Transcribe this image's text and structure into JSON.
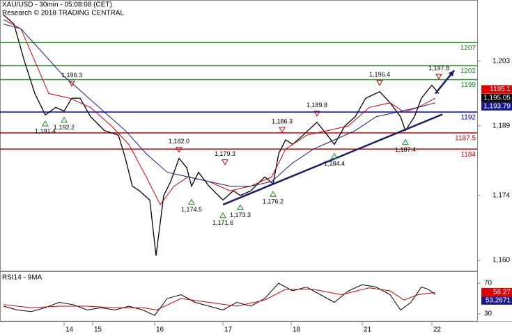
{
  "chart_data": {
    "type": "line",
    "title": "XAU/USD - 30min - 05:08:08 (CET)",
    "subtitle": "Research © 2018 TRADING CENTRAL",
    "xlim": [
      0,
      137
    ],
    "xticks": [
      {
        "value": 18.4,
        "label": "14"
      },
      {
        "value": 26.6,
        "label": "15"
      },
      {
        "value": 44.4,
        "label": "16"
      },
      {
        "value": 64,
        "label": "17"
      },
      {
        "value": 83.6,
        "label": "18"
      },
      {
        "value": 104,
        "label": "21"
      },
      {
        "value": 124,
        "label": "22"
      }
    ],
    "ylim": [
      1157.6,
      1216.2
    ],
    "yticks": [
      {
        "value": 1160,
        "label": "1,160"
      },
      {
        "value": 1174,
        "label": "1,174"
      },
      {
        "value": 1189,
        "label": "1,189"
      },
      {
        "value": 1203,
        "label": "1,203"
      }
    ],
    "series": [
      {
        "color": "#000000",
        "x": [
          1,
          4,
          7,
          10,
          13,
          16,
          18.4,
          20.6,
          23,
          26,
          30,
          34,
          36,
          38,
          40,
          43,
          44.8,
          47,
          49,
          51.4,
          53.6,
          55,
          57,
          60,
          64,
          67,
          69,
          72,
          76,
          78.4,
          80,
          82,
          84,
          87,
          91,
          94,
          96,
          99,
          102,
          105,
          109,
          112,
          115,
          116.4,
          119,
          121,
          124,
          126
        ],
        "values": [
          1213,
          1211,
          1203,
          1196,
          1191.4,
          1193,
          1192.2,
          1195,
          1195,
          1191,
          1188,
          1187,
          1182,
          1176,
          1175,
          1173,
          1161,
          1174,
          1177,
          1182,
          1180,
          1176,
          1179,
          1176,
          1173,
          1175,
          1174,
          1175,
          1178,
          1176.5,
          1183,
          1186,
          1185,
          1187,
          1189.8,
          1187,
          1185,
          1189,
          1191,
          1195,
          1196.4,
          1194,
          1191,
          1188,
          1191,
          1195,
          1197.8,
          1196
        ]
      },
      {
        "color": "#d00000",
        "x": [
          1,
          6,
          10,
          14,
          20,
          26,
          32,
          37,
          42,
          46,
          50,
          54,
          60,
          66,
          72,
          78,
          82,
          88,
          94,
          100,
          106,
          112,
          116,
          120,
          125
        ],
        "values": [
          1212,
          1210,
          1203,
          1196,
          1195,
          1193,
          1189,
          1185,
          1178,
          1172,
          1176,
          1178,
          1177,
          1175,
          1176,
          1178,
          1184,
          1187,
          1188,
          1189,
          1193,
          1194,
          1192,
          1193,
          1195
        ]
      },
      {
        "color": "#1a1a8c",
        "x": [
          1,
          6,
          12,
          18,
          24,
          30,
          36,
          42,
          48,
          54,
          60,
          66,
          72,
          78,
          84,
          90,
          96,
          102,
          108,
          114,
          120,
          125
        ],
        "values": [
          1211,
          1210,
          1205,
          1200,
          1196,
          1192,
          1188,
          1183,
          1179,
          1178,
          1177,
          1176,
          1176,
          1177,
          1181,
          1184,
          1186,
          1188,
          1191,
          1192,
          1193,
          1194
        ]
      }
    ],
    "levels": [
      {
        "value": 1207,
        "color": "#1a8a1a"
      },
      {
        "value": 1202,
        "color": "#1a8a1a"
      },
      {
        "value": 1199,
        "color": "#1a8a1a"
      },
      {
        "value": 1192,
        "color": "#0000b0"
      },
      {
        "value": 1187.5,
        "color": "#c00000"
      },
      {
        "value": 1184,
        "color": "#c00000"
      }
    ],
    "annotations": [
      {
        "x": 13,
        "value": 1191.4,
        "label": "1,191.4",
        "marker": "up"
      },
      {
        "x": 18.4,
        "value": 1192.2,
        "label": "1,192.2",
        "marker": "up"
      },
      {
        "x": 20.6,
        "value": 1196.3,
        "label": "1,196.3",
        "marker": "down"
      },
      {
        "x": 51.4,
        "value": 1182.0,
        "label": "1,182.0",
        "marker": "down"
      },
      {
        "x": 55,
        "value": 1174.5,
        "label": "1,174.5",
        "marker": "up"
      },
      {
        "x": 64.6,
        "value": 1179.3,
        "label": "1,179.3",
        "marker": "down"
      },
      {
        "x": 64,
        "value": 1171.6,
        "label": "1,171.6",
        "marker": "up"
      },
      {
        "x": 69,
        "value": 1173.3,
        "label": "1,173.3",
        "marker": "up"
      },
      {
        "x": 78.4,
        "value": 1176.2,
        "label": "1,176.2",
        "marker": "up"
      },
      {
        "x": 81,
        "value": 1186.3,
        "label": "1,186.3",
        "marker": "down"
      },
      {
        "x": 91,
        "value": 1189.8,
        "label": "1,189.8",
        "marker": "down"
      },
      {
        "x": 96,
        "value": 1184.4,
        "label": "1,184.4",
        "marker": "up"
      },
      {
        "x": 109,
        "value": 1196.4,
        "label": "1,196.4",
        "marker": "down"
      },
      {
        "x": 116.4,
        "value": 1187.4,
        "label": "1,187.4",
        "marker": "up"
      },
      {
        "x": 126,
        "value": 1197.8,
        "label": "1,197.8",
        "marker": "down"
      }
    ],
    "trendlines": [
      {
        "x": [
          64,
          127
        ],
        "values": [
          1172,
          1191.5
        ]
      }
    ],
    "arrows": [
      {
        "x": [
          125,
          130.4
        ],
        "values": [
          1196,
          1201
        ]
      }
    ],
    "price_tags": [
      {
        "value": 1195.1,
        "label": "1195.1",
        "color": "#e00000"
      },
      {
        "value": 1195.05,
        "label": "1,195.05",
        "color": "#000000"
      },
      {
        "value": 1193.79,
        "label": "1,193.79",
        "color": "#1a1a8c"
      }
    ],
    "rsi": {
      "title": "RSI14 - 9MA",
      "ylim": [
        20,
        83.6
      ],
      "yticks": [
        30,
        70
      ],
      "series": [
        {
          "color": "#000000",
          "x": [
            1,
            5,
            9,
            13,
            17,
            21,
            25,
            29,
            33,
            37,
            41,
            44.4,
            48,
            52,
            56,
            60,
            64,
            68,
            72,
            76,
            80,
            84,
            88,
            92,
            96,
            100,
            104,
            108,
            112,
            115,
            118,
            121,
            123,
            125
          ],
          "values": [
            40,
            35,
            33,
            38,
            45,
            42,
            35,
            38,
            35,
            40,
            35,
            28,
            50,
            55,
            45,
            40,
            35,
            45,
            40,
            50,
            70,
            60,
            65,
            55,
            45,
            60,
            68,
            65,
            55,
            35,
            45,
            65,
            62,
            55
          ]
        },
        {
          "color": "#d00000",
          "x": [
            1,
            9,
            17,
            25,
            33,
            41,
            45,
            52,
            60,
            68,
            76,
            82,
            90,
            98,
            106,
            112,
            116,
            120,
            125
          ],
          "values": [
            42,
            38,
            40,
            40,
            38,
            38,
            35,
            50,
            45,
            40,
            48,
            62,
            62,
            55,
            64,
            60,
            48,
            55,
            58
          ]
        }
      ],
      "tags": [
        {
          "value": 58.27,
          "label": "58.27",
          "color": "#e00000"
        },
        {
          "value": 53.2671,
          "label": "53.2671",
          "color": "#1a1a8c"
        }
      ]
    }
  }
}
